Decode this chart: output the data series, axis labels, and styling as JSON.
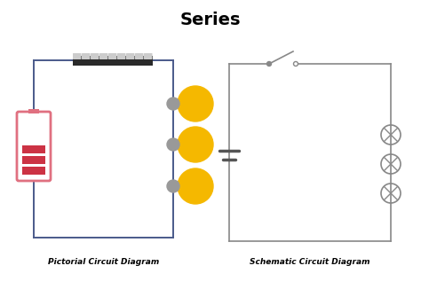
{
  "title": "Series",
  "title_fontsize": 14,
  "title_fontweight": "bold",
  "label_left": "Pictorial Circuit Diagram",
  "label_right": "Schematic Circuit Diagram",
  "label_fontsize": 6.5,
  "label_fontweight": "bold",
  "bg_color": "#ffffff",
  "wire_color_left": "#4a5a8a",
  "wire_color_right": "#888888",
  "battery_color": "#e07080",
  "battery_bar_color": "#cc3344",
  "bulb_color": "#f5b800",
  "bulb_socket_color": "#999999",
  "switch_bg": "#2a2a2a",
  "switch_tooth": "#cccccc",
  "capacitor_color": "#555555"
}
